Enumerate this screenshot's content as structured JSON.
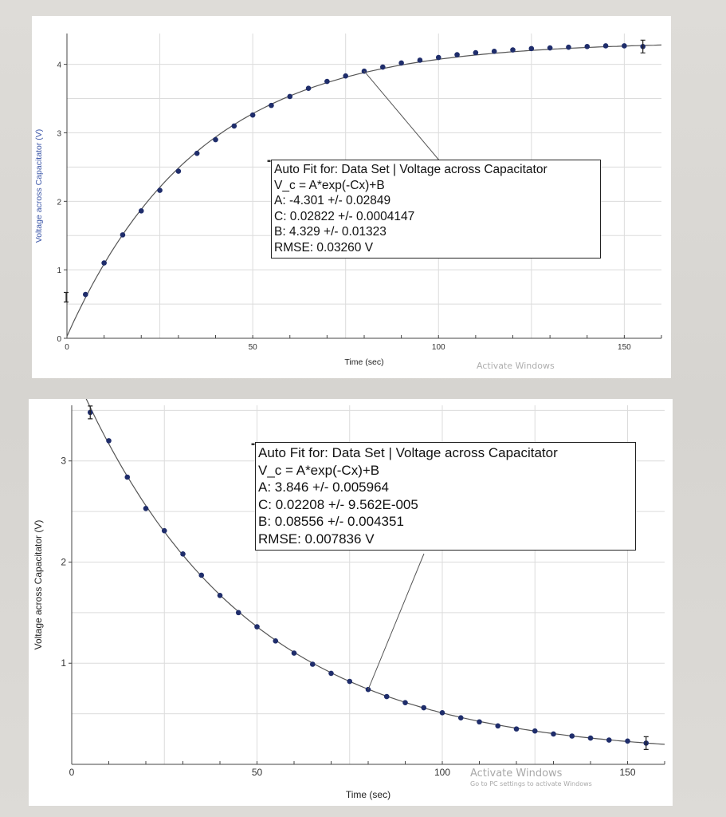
{
  "chart_data": [
    {
      "type": "scatter",
      "title": "",
      "xlabel": "Time (sec)",
      "ylabel": "Voltage across Capacitator (V)",
      "xlim": [
        0,
        160
      ],
      "ylim": [
        0,
        4.45
      ],
      "x_ticks": [
        0,
        50,
        100,
        150
      ],
      "y_ticks": [
        0,
        1,
        2,
        3,
        4
      ],
      "grid": true,
      "series": [
        {
          "x": [
            0,
            5,
            10,
            15,
            20,
            25,
            30,
            35,
            40,
            45,
            50,
            55,
            60,
            65,
            70,
            75,
            80,
            85,
            90,
            95,
            100,
            105,
            110,
            115,
            120,
            125,
            130,
            135,
            140,
            145,
            150,
            155
          ],
          "y": [
            0.6,
            0.64,
            1.1,
            1.51,
            1.86,
            2.16,
            2.44,
            2.7,
            2.9,
            3.1,
            3.26,
            3.4,
            3.53,
            3.65,
            3.75,
            3.83,
            3.9,
            3.96,
            4.02,
            4.06,
            4.1,
            4.14,
            4.17,
            4.19,
            4.21,
            4.23,
            4.24,
            4.25,
            4.26,
            4.27,
            4.27,
            4.26
          ]
        }
      ],
      "fit": {
        "model": "A*exp(-Cx)+B",
        "A": -4.301,
        "C": 0.02822,
        "B": 4.329,
        "x_range": [
          0,
          160
        ]
      },
      "annotation_point": {
        "x": 80,
        "y": 3.9
      },
      "fit_box": {
        "lines": [
          "Auto Fit for: Data Set | Voltage across Capacitator",
          "V_c = A*exp(-Cx)+B",
          "A: -4.301 +/- 0.02849",
          "C: 0.02822 +/- 0.0004147",
          "B: 4.329 +/- 0.01323",
          "RMSE: 0.03260 V"
        ]
      }
    },
    {
      "type": "scatter",
      "title": "",
      "xlabel": "Time (sec)",
      "ylabel": "Voltage across Capacitator (V)",
      "xlim": [
        0,
        160
      ],
      "ylim": [
        0,
        3.55
      ],
      "x_ticks": [
        0,
        50,
        100,
        150
      ],
      "y_ticks": [
        1,
        2,
        3
      ],
      "grid": true,
      "series": [
        {
          "x": [
            5,
            10,
            15,
            20,
            25,
            30,
            35,
            40,
            45,
            50,
            55,
            60,
            65,
            70,
            75,
            80,
            85,
            90,
            95,
            100,
            105,
            110,
            115,
            120,
            125,
            130,
            135,
            140,
            145,
            150,
            155
          ],
          "y": [
            3.48,
            3.2,
            2.84,
            2.53,
            2.31,
            2.08,
            1.87,
            1.67,
            1.5,
            1.36,
            1.22,
            1.1,
            0.99,
            0.9,
            0.82,
            0.74,
            0.67,
            0.61,
            0.56,
            0.51,
            0.46,
            0.42,
            0.38,
            0.35,
            0.33,
            0.3,
            0.28,
            0.26,
            0.24,
            0.23,
            0.21
          ]
        }
      ],
      "fit": {
        "model": "A*exp(-Cx)+B",
        "A": 3.846,
        "C": 0.02208,
        "B": 0.08556,
        "x_range": [
          3,
          160
        ]
      },
      "annotation_point": {
        "x": 80,
        "y": 0.74
      },
      "fit_box": {
        "lines": [
          "Auto Fit for: Data Set | Voltage across Capacitator",
          "V_c = A*exp(-Cx)+B",
          "A: 3.846 +/- 0.005964",
          "C: 0.02208 +/- 9.562E-005",
          "B: 0.08556 +/- 0.004351",
          "RMSE: 0.007836 V"
        ]
      }
    }
  ],
  "watermarks": {
    "top": "Activate Windows",
    "bottom_title": "Activate Windows",
    "bottom_sub": "Go to PC settings to activate Windows"
  }
}
